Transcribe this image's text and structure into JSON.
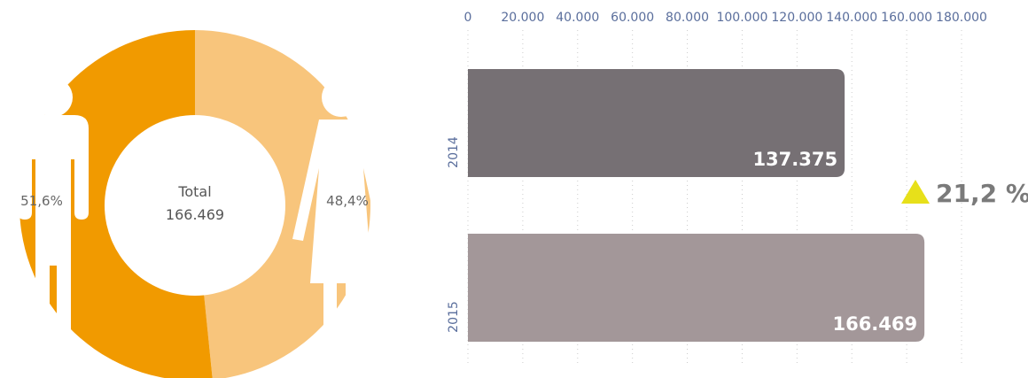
{
  "chart_data": [
    {
      "type": "pie",
      "center_label": "Total",
      "center_value": "166.469",
      "slices": [
        {
          "label": "51,6%",
          "value": 51.6,
          "color": "#f19a00"
        },
        {
          "label": "48,4%",
          "value": 48.4,
          "color": "#f8c57c"
        }
      ],
      "icons": [
        "man-icon",
        "woman-icon"
      ]
    },
    {
      "type": "bar",
      "orientation": "horizontal",
      "categories": [
        "2014",
        "2015"
      ],
      "values": [
        137375,
        166469
      ],
      "value_labels": [
        "137.375",
        "166.469"
      ],
      "colors": [
        "#767074",
        "#a39799"
      ],
      "xlim": [
        0,
        180000
      ],
      "x_ticks": [
        0,
        20000,
        40000,
        60000,
        80000,
        100000,
        120000,
        140000,
        160000,
        180000
      ],
      "x_tick_labels": [
        "0",
        "20.000",
        "40.000",
        "60.000",
        "80.000",
        "100.000",
        "120.000",
        "140.000",
        "160.000",
        "180.000"
      ],
      "axis_position": "top",
      "grid": "dotted vertical",
      "change_label": "21,2 %",
      "change_direction": "up",
      "change_color": "#e7e01a"
    }
  ]
}
